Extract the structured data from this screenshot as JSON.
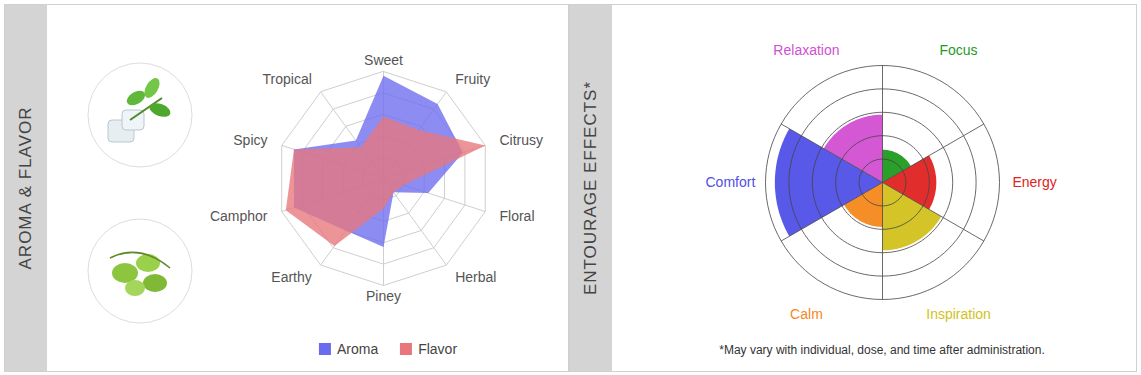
{
  "chart_data": [
    {
      "type": "radar",
      "title": "AROMA & FLAVOR",
      "categories": [
        "Sweet",
        "Fruity",
        "Citrusy",
        "Floral",
        "Herbal",
        "Piney",
        "Earthy",
        "Camphor",
        "Spicy",
        "Tropical"
      ],
      "series": [
        {
          "name": "Aroma",
          "color": "#6b6bef",
          "values": [
            4.8,
            4.3,
            3.9,
            2.2,
            0.8,
            3.2,
            3.0,
            4.4,
            4.4,
            2.2
          ]
        },
        {
          "name": "Flavor",
          "color": "#e8767c",
          "values": [
            2.9,
            2.8,
            5.0,
            1.0,
            0.8,
            1.4,
            3.9,
            4.8,
            4.4,
            1.8
          ]
        }
      ],
      "ylim": [
        0,
        5
      ],
      "yticks": [
        1,
        2,
        3,
        4,
        5
      ],
      "grid": true,
      "tick_labels": false,
      "legend": "bottom"
    },
    {
      "type": "polar_area",
      "title": "ENTOURAGE EFFECTS*",
      "categories": [
        "Focus",
        "Energy",
        "Inspiration",
        "Calm",
        "Comfort",
        "Relaxation"
      ],
      "values": [
        1.4,
        2.3,
        2.9,
        1.9,
        4.6,
        2.9
      ],
      "colors": [
        "#1f9a1f",
        "#e02222",
        "#d2c11c",
        "#f5881c",
        "#4f4fe8",
        "#d24fd2"
      ],
      "ylim": [
        0,
        5
      ],
      "yticks": [
        1,
        2,
        3,
        4,
        5
      ],
      "grid": true,
      "tick_labels": false,
      "annotations": [
        "*May vary with individual, dose, and time after administration."
      ]
    }
  ]
}
